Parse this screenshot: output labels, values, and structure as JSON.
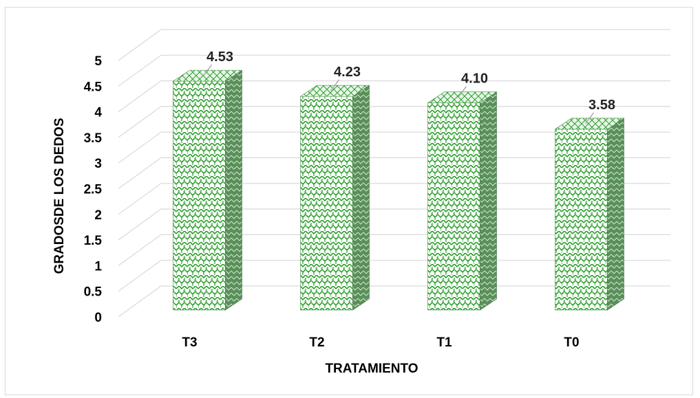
{
  "chart_data": {
    "type": "bar",
    "style": "3d-column",
    "categories": [
      "T3",
      "T2",
      "T1",
      "T0"
    ],
    "values": [
      4.53,
      4.23,
      4.1,
      3.58
    ],
    "data_labels": [
      "4.53",
      "4.23",
      "4.10",
      "3.58"
    ],
    "title": "",
    "xlabel": "TRATAMIENTO",
    "ylabel": "GRADOSDE LOS DEDOS",
    "ylim": [
      0,
      5
    ],
    "yticks": [
      "0",
      "0.5",
      "1",
      "1.5",
      "2",
      "2.5",
      "3",
      "3.5",
      "4",
      "4.5",
      "5"
    ],
    "grid": true,
    "legend": "none",
    "colors": {
      "bar_pattern_fg": "#2e9e2e",
      "bar_pattern_bg": "#ffffff",
      "bar_side": "#5a8f5a",
      "gridline": "#d9d9d9",
      "leader_line": "#a6a6a6"
    }
  }
}
